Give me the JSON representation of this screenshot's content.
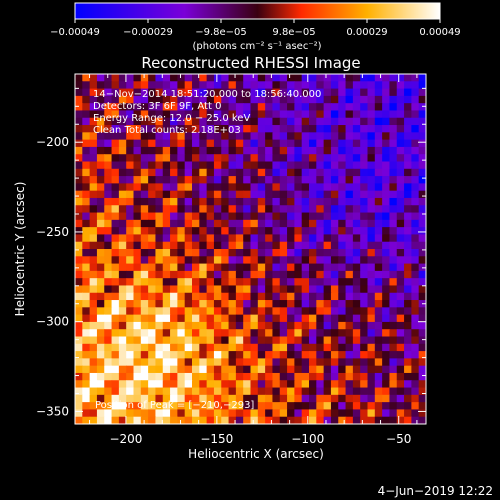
{
  "chart_data": {
    "type": "heatmap",
    "title": "Reconstructed RHESSI Image",
    "xlabel": "Heliocentric X (arcsec)",
    "ylabel": "Heliocentric Y (arcsec)",
    "xlim": [
      -228,
      -35
    ],
    "ylim": [
      -357,
      -162
    ],
    "x_ticks": [
      -200,
      -150,
      -100,
      -50
    ],
    "x_tick_labels": [
      "−200",
      "−150",
      "−100",
      "−50"
    ],
    "y_ticks": [
      -200,
      -250,
      -300,
      -350
    ],
    "y_tick_labels": [
      "−200",
      "−250",
      "−300",
      "−350"
    ],
    "colorbar": {
      "range": [
        -0.00049,
        0.00049
      ],
      "tick_labels": [
        "−0.00049",
        "−0.00029",
        "−9.8e−05",
        "9.8e−05",
        "0.00029",
        "0.00049"
      ],
      "units_label": "(photons cm⁻² s⁻¹ asec⁻²)",
      "colors": [
        "#0000ff",
        "#7a00d8",
        "#3a0010",
        "#ff2a00",
        "#ffb000",
        "#ffffff"
      ]
    },
    "info_lines": [
      "14−Nov−2014 18:51:20.000 to 18:56:40.000",
      "Detectors: 3F 6F 9F, Att 0",
      "Energy Range: 12.0 − 25.0 keV",
      "Clean     Total counts: 2.18E+03"
    ],
    "peak_label": "Position of Peak = [−210,−293]",
    "peak": [
      -210,
      -293
    ],
    "grid": false,
    "field_description": "Mottled pattern; bright positive emission concentrated in lower-left, negative (blue/purple) values in upper-right"
  },
  "footer": {
    "date": "4−Jun−2019 12:22"
  }
}
